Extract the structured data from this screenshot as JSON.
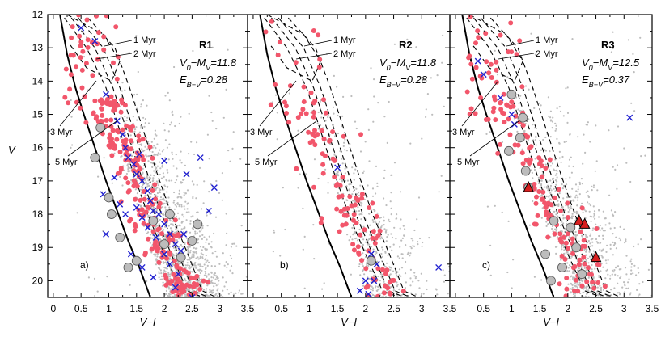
{
  "chart_data": {
    "type": "scatter",
    "xlabel": "V−I",
    "ylabel": "V",
    "xlim": [
      -0.1,
      3.5
    ],
    "ylim": [
      12,
      20.5
    ],
    "y_inverted": true,
    "xticks": [
      "0",
      "0.5",
      "1",
      "1.5",
      "2",
      "2.5",
      "3",
      "3.5"
    ],
    "yticks": [
      "12",
      "13",
      "14",
      "15",
      "16",
      "17",
      "18",
      "19",
      "20"
    ],
    "colors": {
      "field_stars": "#bdbdbd",
      "members": "#f2566b",
      "crosses": "#1f1fd0",
      "circles_fill": "#bcbcbc",
      "triangles": "#d81e1e"
    },
    "isochrone_labels": [
      "1 Myr",
      "2 Myr",
      "3 Myr",
      "5 Myr"
    ],
    "panels": [
      {
        "id": "R1",
        "panel_letter": "a)",
        "title": "R1",
        "distance_modulus": "V0−MV=11.8",
        "reddening": "EB−V=0.28",
        "crosses": [
          [
            0.5,
            12.4
          ],
          [
            0.75,
            12.8
          ],
          [
            0.95,
            14.4
          ],
          [
            1.15,
            15.2
          ],
          [
            1.25,
            15.6
          ],
          [
            1.3,
            16.0
          ],
          [
            1.35,
            16.3
          ],
          [
            1.45,
            16.5
          ],
          [
            1.5,
            16.8
          ],
          [
            1.6,
            17.0
          ],
          [
            1.7,
            17.3
          ],
          [
            1.75,
            17.6
          ],
          [
            1.8,
            17.9
          ],
          [
            1.9,
            18.0
          ],
          [
            2.0,
            18.3
          ],
          [
            2.1,
            18.6
          ],
          [
            2.2,
            18.9
          ],
          [
            2.3,
            19.1
          ],
          [
            1.5,
            17.8
          ],
          [
            1.6,
            18.1
          ],
          [
            1.7,
            18.4
          ],
          [
            1.85,
            18.7
          ],
          [
            2.0,
            19.2
          ],
          [
            2.1,
            19.5
          ],
          [
            1.4,
            19.2
          ],
          [
            1.6,
            19.6
          ],
          [
            1.8,
            19.9
          ],
          [
            2.2,
            20.2
          ],
          [
            2.5,
            20.5
          ],
          [
            2.8,
            17.9
          ],
          [
            2.9,
            17.2
          ],
          [
            2.65,
            16.3
          ],
          [
            2.4,
            16.8
          ],
          [
            2.0,
            16.4
          ],
          [
            1.55,
            16.2
          ],
          [
            1.1,
            16.9
          ],
          [
            0.9,
            17.4
          ],
          [
            1.2,
            17.7
          ],
          [
            1.3,
            18.0
          ],
          [
            0.95,
            18.6
          ],
          [
            2.25,
            19.8
          ],
          [
            2.35,
            18.6
          ]
        ],
        "circles": [
          [
            0.85,
            15.4
          ],
          [
            0.75,
            16.3
          ],
          [
            1.0,
            17.5
          ],
          [
            1.05,
            18.0
          ],
          [
            1.2,
            18.7
          ],
          [
            1.35,
            19.6
          ],
          [
            1.5,
            19.4
          ],
          [
            1.8,
            18.2
          ],
          [
            2.1,
            18.0
          ],
          [
            2.3,
            19.3
          ],
          [
            2.5,
            18.8
          ],
          [
            2.6,
            18.3
          ],
          [
            2.0,
            18.9
          ]
        ],
        "triangles": []
      },
      {
        "id": "R2",
        "panel_letter": "b)",
        "title": "R2",
        "distance_modulus": "V0−MV=11.8",
        "reddening": "EB−V=0.28",
        "crosses": [
          [
            1.5,
            16.6
          ],
          [
            2.1,
            19.2
          ],
          [
            2.2,
            19.5
          ],
          [
            2.0,
            20.0
          ],
          [
            1.9,
            20.3
          ],
          [
            2.05,
            20.4
          ],
          [
            2.15,
            20.0
          ],
          [
            3.3,
            19.6
          ]
        ],
        "circles": [
          [
            2.1,
            19.4
          ]
        ],
        "triangles": []
      },
      {
        "id": "R3",
        "panel_letter": "c)",
        "title": "R3",
        "distance_modulus": "V0−MV=12.5",
        "reddening": "EB−V=0.37",
        "crosses": [
          [
            0.4,
            13.4
          ],
          [
            0.5,
            13.8
          ],
          [
            0.8,
            14.5
          ],
          [
            1.0,
            15.0
          ],
          [
            1.05,
            15.3
          ],
          [
            3.1,
            15.1
          ]
        ],
        "circles": [
          [
            1.0,
            14.4
          ],
          [
            1.2,
            15.1
          ],
          [
            1.15,
            15.7
          ],
          [
            0.95,
            16.1
          ],
          [
            1.25,
            16.7
          ],
          [
            1.3,
            17.2
          ],
          [
            1.75,
            18.2
          ],
          [
            2.05,
            18.4
          ],
          [
            2.15,
            19.0
          ],
          [
            1.6,
            19.2
          ],
          [
            1.9,
            19.6
          ],
          [
            2.25,
            19.8
          ],
          [
            1.7,
            20.0
          ]
        ],
        "triangles": [
          [
            1.3,
            17.2
          ],
          [
            2.2,
            18.2
          ],
          [
            2.3,
            18.3
          ],
          [
            2.5,
            19.3
          ]
        ]
      }
    ]
  }
}
